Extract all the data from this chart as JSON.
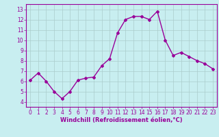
{
  "x": [
    0,
    1,
    2,
    3,
    4,
    5,
    6,
    7,
    8,
    9,
    10,
    11,
    12,
    13,
    14,
    15,
    16,
    17,
    18,
    19,
    20,
    21,
    22,
    23
  ],
  "y": [
    6.1,
    6.8,
    6.0,
    5.0,
    4.3,
    5.0,
    6.1,
    6.3,
    6.4,
    7.5,
    8.2,
    10.7,
    12.0,
    12.3,
    12.3,
    12.0,
    12.8,
    10.0,
    8.5,
    8.8,
    8.4,
    8.0,
    7.7,
    7.2
  ],
  "line_color": "#990099",
  "marker": "D",
  "marker_size": 2,
  "bg_color": "#c8eef0",
  "grid_color": "#aacccc",
  "xlabel": "Windchill (Refroidissement éolien,°C)",
  "xlabel_color": "#990099",
  "tick_color": "#990099",
  "spine_color": "#990099",
  "ylim": [
    3.5,
    13.5
  ],
  "xlim": [
    -0.5,
    23.5
  ],
  "yticks": [
    4,
    5,
    6,
    7,
    8,
    9,
    10,
    11,
    12,
    13
  ],
  "xticks": [
    0,
    1,
    2,
    3,
    4,
    5,
    6,
    7,
    8,
    9,
    10,
    11,
    12,
    13,
    14,
    15,
    16,
    17,
    18,
    19,
    20,
    21,
    22,
    23
  ],
  "tick_fontsize": 5.5,
  "xlabel_fontsize": 6.0,
  "linewidth": 1.0
}
